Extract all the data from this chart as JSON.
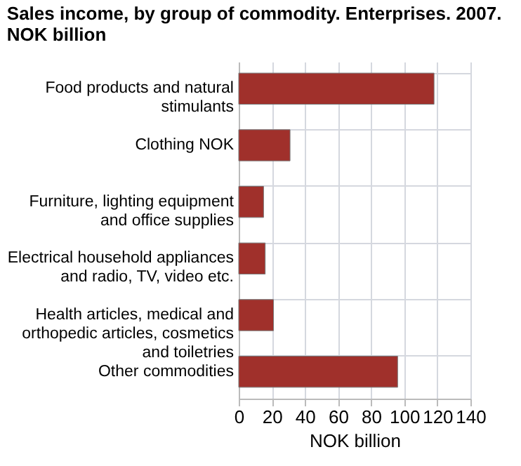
{
  "chart_data": {
    "type": "bar",
    "orientation": "horizontal",
    "title": "Sales income, by group of commodity. Enterprises. 2007. NOK billion",
    "xlabel": "NOK billion",
    "categories": [
      "Food products and natural stimulants",
      "Clothing NOK",
      "Furniture, lighting equipment and office supplies",
      "Electrical household appliances and radio, TV, video etc.",
      "Health articles, medical and orthopedic articles, cosmetics and toiletries",
      "Other commodities"
    ],
    "values": [
      118,
      31,
      15,
      16,
      21,
      96
    ],
    "color": "#a0302b",
    "xlim": [
      0,
      140
    ],
    "xticks": [
      0,
      20,
      40,
      60,
      80,
      100,
      120,
      140
    ],
    "grid": true
  }
}
